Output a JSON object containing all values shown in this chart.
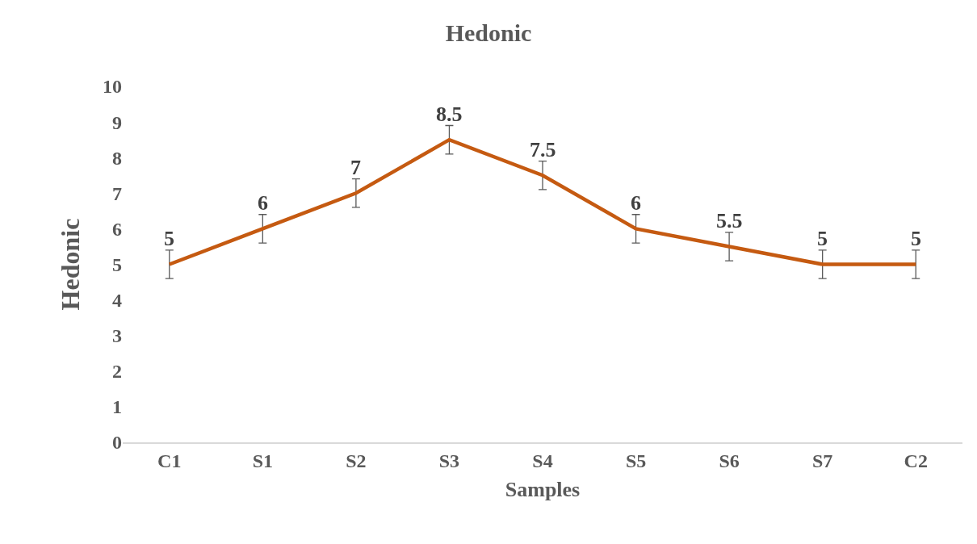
{
  "chart_data": {
    "type": "line",
    "title": "Hedonic",
    "xlabel": "Samples",
    "ylabel": "Hedonic",
    "categories": [
      "C1",
      "S1",
      "S2",
      "S3",
      "S4",
      "S5",
      "S6",
      "S7",
      "C2"
    ],
    "series": [
      {
        "color": "#c55a11",
        "values": [
          5,
          6,
          7,
          8.5,
          7.5,
          6,
          5.5,
          5,
          5
        ],
        "errors": [
          0.4,
          0.4,
          0.4,
          0.4,
          0.4,
          0.4,
          0.4,
          0.4,
          0.4
        ]
      }
    ],
    "ylim": [
      0,
      10
    ],
    "yticks": [
      0,
      1,
      2,
      3,
      4,
      5,
      6,
      7,
      8,
      9,
      10
    ],
    "grid": false,
    "marker": "none",
    "line_style": "solid",
    "data_labels": true
  }
}
